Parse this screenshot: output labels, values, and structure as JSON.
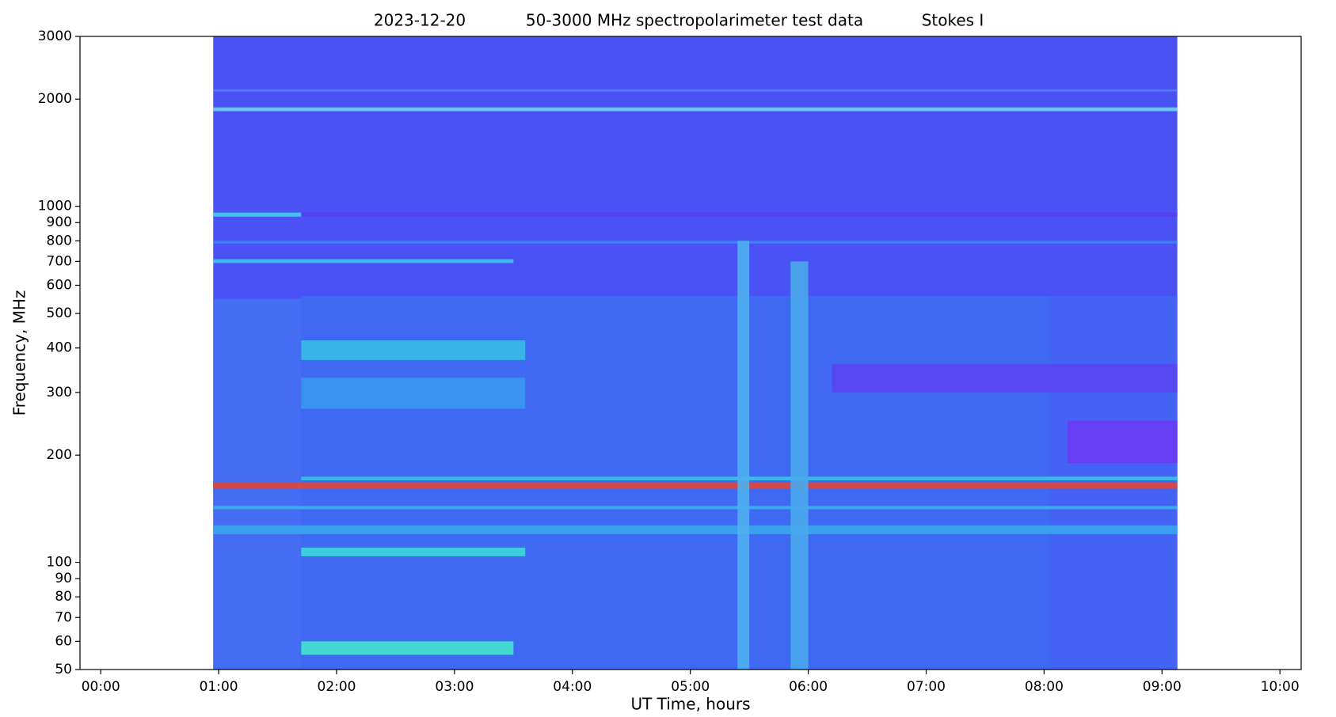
{
  "chart_data": {
    "type": "spectrogram",
    "title_parts": [
      "2023-12-20",
      "50-3000 MHz spectropolarimeter test data",
      "Stokes I"
    ],
    "xlabel": "UT Time, hours",
    "ylabel": "Frequency, MHz",
    "xlim": [
      -0.176,
      10.18
    ],
    "ylim": [
      50,
      3000
    ],
    "yscale": "log",
    "xticks": [
      {
        "value": 0,
        "label": "00:00"
      },
      {
        "value": 1,
        "label": "01:00"
      },
      {
        "value": 2,
        "label": "02:00"
      },
      {
        "value": 3,
        "label": "03:00"
      },
      {
        "value": 4,
        "label": "04:00"
      },
      {
        "value": 5,
        "label": "05:00"
      },
      {
        "value": 6,
        "label": "06:00"
      },
      {
        "value": 7,
        "label": "07:00"
      },
      {
        "value": 8,
        "label": "08:00"
      },
      {
        "value": 9,
        "label": "09:00"
      },
      {
        "value": 10,
        "label": "10:00"
      }
    ],
    "yticks": [
      50,
      60,
      70,
      80,
      90,
      100,
      200,
      300,
      400,
      500,
      600,
      700,
      800,
      900,
      1000,
      2000,
      3000
    ],
    "data_extent": [
      0.954,
      9.13
    ],
    "background_color": "#4a52f6",
    "bands": [
      {
        "y0": 50,
        "y1": 550,
        "x0": 0.954,
        "x1": 1.7,
        "color": "#4470f4"
      },
      {
        "y0": 50,
        "y1": 560,
        "x0": 1.7,
        "x1": 8.05,
        "color": "#3f6cf3"
      },
      {
        "y0": 50,
        "y1": 560,
        "x0": 8.05,
        "x1": 9.13,
        "color": "#4464f4"
      },
      {
        "y0": 300,
        "y1": 360,
        "x0": 6.2,
        "x1": 9.13,
        "color": "#5a45f2"
      },
      {
        "y0": 190,
        "y1": 250,
        "x0": 8.2,
        "x1": 9.13,
        "color": "#6a3cf5"
      },
      {
        "y0": 1850,
        "y1": 1895,
        "x0": 0.954,
        "x1": 9.13,
        "color": "#6fd4ee"
      },
      {
        "y0": 2100,
        "y1": 2130,
        "x0": 0.954,
        "x1": 9.13,
        "color": "#4e7ff2"
      },
      {
        "y0": 935,
        "y1": 960,
        "x0": 0.954,
        "x1": 1.7,
        "color": "#3ed0e8"
      },
      {
        "y0": 935,
        "y1": 960,
        "x0": 1.7,
        "x1": 9.13,
        "color": "#5a3ef2"
      },
      {
        "y0": 785,
        "y1": 800,
        "x0": 0.954,
        "x1": 9.13,
        "color": "#3a84f0"
      },
      {
        "y0": 693,
        "y1": 710,
        "x0": 0.954,
        "x1": 3.5,
        "color": "#3fc4ec"
      },
      {
        "y0": 370,
        "y1": 420,
        "x0": 1.7,
        "x1": 3.6,
        "color": "#38bde6"
      },
      {
        "y0": 270,
        "y1": 330,
        "x0": 1.7,
        "x1": 3.6,
        "color": "#3a98ef"
      },
      {
        "y0": 161,
        "y1": 168,
        "x0": 0.954,
        "x1": 9.13,
        "color": "#e0453a"
      },
      {
        "y0": 170,
        "y1": 174,
        "x0": 1.7,
        "x1": 9.13,
        "color": "#36c6e0"
      },
      {
        "y0": 141,
        "y1": 144,
        "x0": 0.954,
        "x1": 9.13,
        "color": "#3ab0ee"
      },
      {
        "y0": 120,
        "y1": 127,
        "x0": 0.954,
        "x1": 9.13,
        "color": "#3aa6f0"
      },
      {
        "y0": 104,
        "y1": 110,
        "x0": 1.7,
        "x1": 3.6,
        "color": "#3ed8dc"
      },
      {
        "y0": 55,
        "y1": 60,
        "x0": 1.7,
        "x1": 3.5,
        "color": "#44e4cc"
      },
      {
        "y0": 50,
        "y1": 800,
        "x0": 5.4,
        "x1": 5.5,
        "color": "#4fb0ee"
      },
      {
        "y0": 50,
        "y1": 700,
        "x0": 5.85,
        "x1": 6.0,
        "color": "#4aa8ec"
      }
    ]
  }
}
